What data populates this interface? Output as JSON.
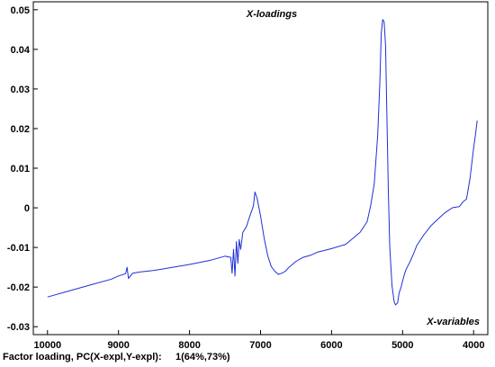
{
  "chart_data": {
    "type": "line",
    "title": "X-loadings",
    "xlabel": "X-variables",
    "ylabel": "",
    "x_reversed": true,
    "xlim": [
      10200,
      3800
    ],
    "ylim": [
      -0.032,
      0.052
    ],
    "xticks": [
      10000,
      9000,
      8000,
      7000,
      6000,
      5000,
      4000
    ],
    "yticks": [
      -0.03,
      -0.02,
      -0.01,
      0,
      0.01,
      0.02,
      0.03,
      0.04,
      0.05
    ],
    "ytick_labels": [
      "-0.03",
      "-0.02",
      "-0.01",
      "0",
      "0.01",
      "0.02",
      "0.03",
      "0.04",
      "0.05"
    ],
    "grid": false,
    "line_color": "#1f2fd6",
    "series": [
      {
        "x": [
          10000,
          9700,
          9400,
          9100,
          9000,
          8900,
          8880,
          8860,
          8800,
          8700,
          8500,
          8300,
          8000,
          7700,
          7500,
          7420,
          7400,
          7380,
          7360,
          7340,
          7320,
          7300,
          7280,
          7250,
          7200,
          7150,
          7100,
          7080,
          7050,
          7000,
          6950,
          6900,
          6850,
          6800,
          6750,
          6700,
          6650,
          6600,
          6500,
          6400,
          6300,
          6200,
          6000,
          5800,
          5600,
          5500,
          5450,
          5400,
          5350,
          5320,
          5300,
          5280,
          5260,
          5240,
          5220,
          5200,
          5180,
          5150,
          5120,
          5100,
          5070,
          5050,
          5020,
          5000,
          4970,
          4950,
          4900,
          4850,
          4800,
          4700,
          4600,
          4500,
          4400,
          4300,
          4200,
          4150,
          4100,
          4050,
          4000,
          3970,
          3950
        ],
        "y": [
          -0.0225,
          -0.021,
          -0.0195,
          -0.018,
          -0.0172,
          -0.0166,
          -0.015,
          -0.0178,
          -0.0165,
          -0.0162,
          -0.0158,
          -0.0152,
          -0.0143,
          -0.0132,
          -0.0122,
          -0.0125,
          -0.0165,
          -0.0105,
          -0.0172,
          -0.0085,
          -0.014,
          -0.008,
          -0.0105,
          -0.0062,
          -0.0048,
          -0.002,
          0.0005,
          0.004,
          0.0025,
          -0.002,
          -0.0075,
          -0.012,
          -0.0148,
          -0.016,
          -0.0168,
          -0.0165,
          -0.016,
          -0.015,
          -0.0135,
          -0.0125,
          -0.012,
          -0.0112,
          -0.0103,
          -0.0092,
          -0.0062,
          -0.0035,
          0.0005,
          0.006,
          0.0185,
          0.032,
          0.044,
          0.0475,
          0.047,
          0.041,
          0.022,
          0.004,
          -0.01,
          -0.0195,
          -0.0235,
          -0.0245,
          -0.024,
          -0.0215,
          -0.02,
          -0.0185,
          -0.0165,
          -0.0155,
          -0.0138,
          -0.0118,
          -0.0095,
          -0.0068,
          -0.0045,
          -0.0028,
          -0.0012,
          0.0,
          0.0003,
          0.0015,
          0.0022,
          0.0075,
          0.015,
          0.019,
          0.022
        ]
      }
    ]
  },
  "footer": {
    "caption": "Factor loading, PC(X-expl,Y-expl):",
    "value": "1(64%,73%)"
  }
}
